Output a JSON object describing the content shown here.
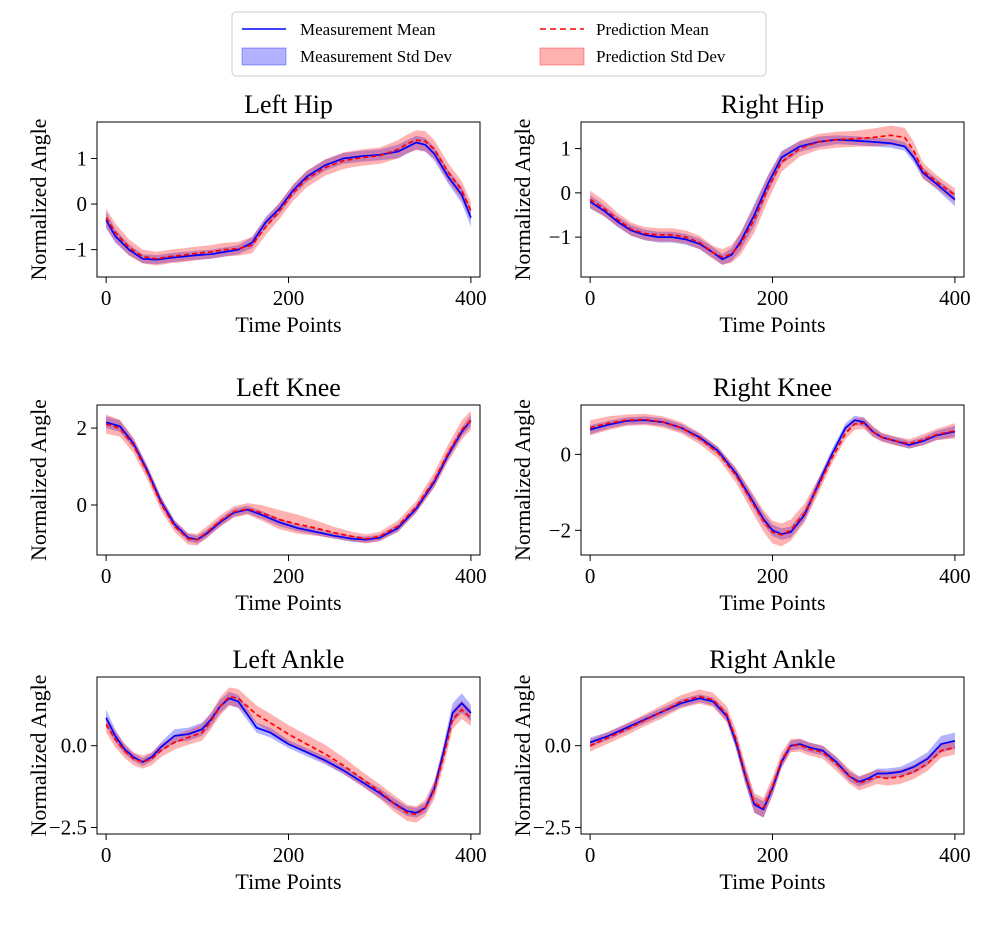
{
  "legend": {
    "items": [
      {
        "label": "Measurement Mean",
        "kind": "line",
        "color": "#0000ff",
        "dash": "solid"
      },
      {
        "label": "Prediction Mean",
        "kind": "line",
        "color": "#ff0000",
        "dash": "dashed"
      },
      {
        "label": "Measurement Std Dev",
        "kind": "patch",
        "color": "#0000ff"
      },
      {
        "label": "Prediction Std Dev",
        "kind": "patch",
        "color": "#ff0000"
      }
    ]
  },
  "chart_data": [
    {
      "type": "line",
      "title": "Left Hip",
      "xlabel": "Time Points",
      "ylabel": "Normalized Angle",
      "xlim": [
        -10,
        410
      ],
      "ylim": [
        -1.6,
        1.8
      ],
      "xticks": [
        0,
        200,
        400
      ],
      "yticks": [
        -1,
        0,
        1
      ],
      "ytick_labels": [
        "−1",
        "0",
        "1"
      ],
      "x": [
        0,
        10,
        25,
        40,
        55,
        70,
        85,
        100,
        115,
        130,
        145,
        160,
        175,
        190,
        205,
        220,
        240,
        260,
        280,
        300,
        320,
        330,
        340,
        350,
        360,
        375,
        390,
        400
      ],
      "series": [
        {
          "name": "Measurement",
          "mean": [
            -0.35,
            -0.7,
            -1.0,
            -1.2,
            -1.22,
            -1.18,
            -1.15,
            -1.12,
            -1.1,
            -1.05,
            -1.0,
            -0.85,
            -0.4,
            -0.1,
            0.3,
            0.6,
            0.85,
            1.0,
            1.05,
            1.08,
            1.15,
            1.25,
            1.35,
            1.3,
            1.1,
            0.6,
            0.2,
            -0.3
          ],
          "std": [
            0.18,
            0.15,
            0.12,
            0.1,
            0.1,
            0.1,
            0.1,
            0.1,
            0.1,
            0.1,
            0.1,
            0.12,
            0.12,
            0.12,
            0.12,
            0.12,
            0.12,
            0.12,
            0.12,
            0.12,
            0.15,
            0.15,
            0.15,
            0.15,
            0.15,
            0.15,
            0.18,
            0.2
          ],
          "color": "#0000ff"
        },
        {
          "name": "Prediction",
          "mean": [
            -0.3,
            -0.62,
            -0.95,
            -1.15,
            -1.2,
            -1.15,
            -1.12,
            -1.08,
            -1.05,
            -1.0,
            -0.98,
            -0.9,
            -0.5,
            -0.15,
            0.25,
            0.55,
            0.8,
            0.95,
            1.02,
            1.06,
            1.2,
            1.32,
            1.4,
            1.38,
            1.2,
            0.7,
            0.3,
            -0.15
          ],
          "std": [
            0.2,
            0.2,
            0.18,
            0.15,
            0.15,
            0.15,
            0.15,
            0.15,
            0.15,
            0.15,
            0.15,
            0.18,
            0.18,
            0.18,
            0.18,
            0.18,
            0.18,
            0.18,
            0.18,
            0.18,
            0.2,
            0.2,
            0.22,
            0.22,
            0.2,
            0.2,
            0.2,
            0.2
          ],
          "color": "#ff0000"
        }
      ]
    },
    {
      "type": "line",
      "title": "Right Hip",
      "xlabel": "Time Points",
      "ylabel": "Normalized Angle",
      "xlim": [
        -10,
        410
      ],
      "ylim": [
        -1.9,
        1.6
      ],
      "xticks": [
        0,
        200,
        400
      ],
      "yticks": [
        -1,
        0,
        1
      ],
      "ytick_labels": [
        "−1",
        "0",
        "1"
      ],
      "x": [
        0,
        15,
        30,
        45,
        60,
        75,
        90,
        105,
        120,
        135,
        145,
        155,
        165,
        180,
        195,
        210,
        230,
        250,
        270,
        290,
        310,
        330,
        345,
        355,
        365,
        380,
        400
      ],
      "series": [
        {
          "name": "Measurement",
          "mean": [
            -0.2,
            -0.4,
            -0.65,
            -0.85,
            -0.95,
            -1.0,
            -1.0,
            -1.05,
            -1.15,
            -1.35,
            -1.5,
            -1.4,
            -1.1,
            -0.5,
            0.2,
            0.8,
            1.05,
            1.15,
            1.2,
            1.18,
            1.15,
            1.12,
            1.05,
            0.8,
            0.45,
            0.2,
            -0.15
          ],
          "std": [
            0.15,
            0.12,
            0.12,
            0.12,
            0.12,
            0.12,
            0.12,
            0.12,
            0.12,
            0.12,
            0.12,
            0.15,
            0.2,
            0.25,
            0.2,
            0.15,
            0.12,
            0.12,
            0.1,
            0.1,
            0.1,
            0.1,
            0.1,
            0.12,
            0.12,
            0.12,
            0.15
          ],
          "color": "#0000ff"
        },
        {
          "name": "Prediction",
          "mean": [
            -0.15,
            -0.35,
            -0.6,
            -0.82,
            -0.92,
            -0.95,
            -0.95,
            -1.0,
            -1.12,
            -1.35,
            -1.45,
            -1.38,
            -1.15,
            -0.6,
            0.1,
            0.7,
            1.0,
            1.15,
            1.2,
            1.22,
            1.25,
            1.3,
            1.25,
            0.95,
            0.5,
            0.25,
            -0.05
          ],
          "std": [
            0.2,
            0.18,
            0.15,
            0.15,
            0.15,
            0.15,
            0.15,
            0.15,
            0.15,
            0.15,
            0.18,
            0.2,
            0.25,
            0.3,
            0.28,
            0.22,
            0.18,
            0.18,
            0.18,
            0.18,
            0.2,
            0.22,
            0.22,
            0.2,
            0.18,
            0.15,
            0.15
          ],
          "color": "#ff0000"
        }
      ]
    },
    {
      "type": "line",
      "title": "Left Knee",
      "xlabel": "Time Points",
      "ylabel": "Normalized Angle",
      "xlim": [
        -10,
        410
      ],
      "ylim": [
        -1.3,
        2.6
      ],
      "xticks": [
        0,
        200,
        400
      ],
      "yticks": [
        0,
        2
      ],
      "ytick_labels": [
        "0",
        "2"
      ],
      "x": [
        0,
        15,
        30,
        45,
        60,
        75,
        90,
        100,
        110,
        125,
        140,
        155,
        170,
        190,
        210,
        230,
        250,
        270,
        285,
        300,
        320,
        340,
        360,
        375,
        390,
        400
      ],
      "series": [
        {
          "name": "Measurement",
          "mean": [
            2.15,
            2.05,
            1.6,
            0.9,
            0.1,
            -0.5,
            -0.85,
            -0.9,
            -0.75,
            -0.45,
            -0.2,
            -0.12,
            -0.25,
            -0.45,
            -0.6,
            -0.7,
            -0.8,
            -0.88,
            -0.9,
            -0.85,
            -0.6,
            -0.1,
            0.6,
            1.3,
            1.9,
            2.2
          ],
          "std": [
            0.15,
            0.15,
            0.12,
            0.12,
            0.12,
            0.1,
            0.1,
            0.1,
            0.1,
            0.1,
            0.1,
            0.1,
            0.1,
            0.1,
            0.08,
            0.08,
            0.08,
            0.08,
            0.08,
            0.08,
            0.1,
            0.1,
            0.12,
            0.12,
            0.12,
            0.15
          ],
          "color": "#0000ff"
        },
        {
          "name": "Prediction",
          "mean": [
            2.1,
            2.0,
            1.55,
            0.85,
            0.05,
            -0.55,
            -0.88,
            -0.9,
            -0.72,
            -0.42,
            -0.18,
            -0.1,
            -0.2,
            -0.38,
            -0.5,
            -0.6,
            -0.72,
            -0.82,
            -0.88,
            -0.82,
            -0.55,
            -0.05,
            0.65,
            1.35,
            1.95,
            2.2
          ],
          "std": [
            0.25,
            0.22,
            0.2,
            0.18,
            0.18,
            0.15,
            0.15,
            0.15,
            0.15,
            0.15,
            0.15,
            0.15,
            0.2,
            0.25,
            0.25,
            0.2,
            0.15,
            0.12,
            0.12,
            0.12,
            0.15,
            0.15,
            0.2,
            0.22,
            0.25,
            0.25
          ],
          "color": "#ff0000"
        }
      ]
    },
    {
      "type": "line",
      "title": "Right Knee",
      "xlabel": "Time Points",
      "ylabel": "Normalized Angle",
      "xlim": [
        -10,
        410
      ],
      "ylim": [
        -2.65,
        1.3
      ],
      "xticks": [
        0,
        200,
        400
      ],
      "yticks": [
        -2,
        0
      ],
      "ytick_labels": [
        "−2",
        "0"
      ],
      "x": [
        0,
        20,
        40,
        60,
        80,
        100,
        120,
        140,
        160,
        175,
        190,
        200,
        210,
        220,
        235,
        250,
        265,
        280,
        290,
        300,
        310,
        320,
        335,
        350,
        365,
        380,
        400
      ],
      "series": [
        {
          "name": "Measurement",
          "mean": [
            0.65,
            0.78,
            0.88,
            0.9,
            0.85,
            0.7,
            0.45,
            0.1,
            -0.5,
            -1.1,
            -1.7,
            -2.0,
            -2.1,
            -2.05,
            -1.6,
            -0.8,
            0.0,
            0.7,
            0.9,
            0.85,
            0.6,
            0.45,
            0.35,
            0.25,
            0.35,
            0.5,
            0.6
          ],
          "std": [
            0.12,
            0.1,
            0.1,
            0.1,
            0.1,
            0.1,
            0.1,
            0.1,
            0.12,
            0.15,
            0.15,
            0.15,
            0.15,
            0.15,
            0.15,
            0.15,
            0.12,
            0.12,
            0.12,
            0.12,
            0.12,
            0.1,
            0.1,
            0.1,
            0.1,
            0.12,
            0.15
          ],
          "color": "#0000ff"
        },
        {
          "name": "Prediction",
          "mean": [
            0.7,
            0.82,
            0.9,
            0.92,
            0.85,
            0.7,
            0.42,
            0.05,
            -0.55,
            -1.15,
            -1.75,
            -2.05,
            -2.12,
            -2.0,
            -1.55,
            -0.85,
            -0.1,
            0.55,
            0.8,
            0.82,
            0.6,
            0.45,
            0.35,
            0.28,
            0.38,
            0.52,
            0.62
          ],
          "std": [
            0.2,
            0.18,
            0.15,
            0.15,
            0.15,
            0.15,
            0.15,
            0.15,
            0.2,
            0.25,
            0.28,
            0.3,
            0.3,
            0.28,
            0.25,
            0.2,
            0.15,
            0.15,
            0.15,
            0.15,
            0.15,
            0.12,
            0.12,
            0.12,
            0.15,
            0.15,
            0.2
          ],
          "color": "#ff0000"
        }
      ]
    },
    {
      "type": "line",
      "title": "Left Ankle",
      "xlabel": "Time Points",
      "ylabel": "Normalized Angle",
      "xlim": [
        -10,
        410
      ],
      "ylim": [
        -2.7,
        2.1
      ],
      "xticks": [
        0,
        200,
        400
      ],
      "yticks": [
        -2.5,
        0
      ],
      "ytick_labels": [
        "−2.5",
        "0.0"
      ],
      "x": [
        0,
        10,
        20,
        30,
        40,
        50,
        60,
        75,
        90,
        105,
        115,
        125,
        135,
        145,
        155,
        165,
        180,
        200,
        220,
        240,
        260,
        280,
        300,
        315,
        330,
        340,
        350,
        360,
        370,
        380,
        390,
        400
      ],
      "series": [
        {
          "name": "Measurement",
          "mean": [
            0.85,
            0.3,
            -0.1,
            -0.35,
            -0.5,
            -0.35,
            -0.05,
            0.3,
            0.35,
            0.5,
            0.8,
            1.2,
            1.45,
            1.35,
            0.95,
            0.55,
            0.4,
            0.05,
            -0.2,
            -0.45,
            -0.75,
            -1.1,
            -1.45,
            -1.75,
            -2.0,
            -2.05,
            -1.9,
            -1.3,
            -0.2,
            1.0,
            1.3,
            1.0
          ],
          "std": [
            0.25,
            0.2,
            0.15,
            0.12,
            0.12,
            0.12,
            0.15,
            0.2,
            0.2,
            0.2,
            0.2,
            0.2,
            0.2,
            0.2,
            0.18,
            0.15,
            0.15,
            0.12,
            0.12,
            0.12,
            0.12,
            0.12,
            0.15,
            0.15,
            0.15,
            0.15,
            0.15,
            0.2,
            0.25,
            0.3,
            0.3,
            0.25
          ],
          "color": "#0000ff"
        },
        {
          "name": "Prediction",
          "mean": [
            0.65,
            0.2,
            -0.15,
            -0.4,
            -0.5,
            -0.4,
            -0.15,
            0.1,
            0.25,
            0.4,
            0.75,
            1.2,
            1.5,
            1.45,
            1.2,
            0.95,
            0.7,
            0.35,
            0.05,
            -0.25,
            -0.6,
            -1.0,
            -1.4,
            -1.75,
            -2.05,
            -2.1,
            -1.9,
            -1.35,
            -0.35,
            0.8,
            1.1,
            0.85
          ],
          "std": [
            0.25,
            0.25,
            0.22,
            0.2,
            0.2,
            0.2,
            0.2,
            0.22,
            0.22,
            0.25,
            0.25,
            0.28,
            0.28,
            0.28,
            0.28,
            0.28,
            0.28,
            0.28,
            0.28,
            0.28,
            0.25,
            0.22,
            0.22,
            0.25,
            0.25,
            0.25,
            0.25,
            0.28,
            0.3,
            0.3,
            0.28,
            0.25
          ],
          "color": "#ff0000"
        }
      ]
    },
    {
      "type": "line",
      "title": "Right Ankle",
      "xlabel": "Time Points",
      "ylabel": "Normalized Angle",
      "xlim": [
        -10,
        410
      ],
      "ylim": [
        -2.7,
        2.1
      ],
      "xticks": [
        0,
        200,
        400
      ],
      "yticks": [
        -2.5,
        0
      ],
      "ytick_labels": [
        "−2.5",
        "0.0"
      ],
      "x": [
        0,
        20,
        40,
        60,
        80,
        100,
        120,
        135,
        150,
        160,
        170,
        180,
        190,
        200,
        210,
        220,
        230,
        240,
        255,
        270,
        285,
        295,
        305,
        315,
        325,
        340,
        355,
        370,
        385,
        400
      ],
      "series": [
        {
          "name": "Measurement",
          "mean": [
            0.1,
            0.3,
            0.55,
            0.8,
            1.05,
            1.3,
            1.45,
            1.35,
            0.9,
            0.1,
            -0.9,
            -1.8,
            -1.95,
            -1.3,
            -0.5,
            0.0,
            0.05,
            -0.05,
            -0.15,
            -0.5,
            -0.95,
            -1.1,
            -1.0,
            -0.85,
            -0.85,
            -0.8,
            -0.65,
            -0.4,
            0.05,
            0.15
          ],
          "std": [
            0.15,
            0.12,
            0.12,
            0.12,
            0.12,
            0.12,
            0.12,
            0.12,
            0.15,
            0.2,
            0.25,
            0.25,
            0.25,
            0.2,
            0.15,
            0.15,
            0.15,
            0.15,
            0.15,
            0.15,
            0.15,
            0.15,
            0.15,
            0.15,
            0.15,
            0.15,
            0.2,
            0.2,
            0.25,
            0.25
          ],
          "color": "#0000ff"
        },
        {
          "name": "Prediction",
          "mean": [
            0.0,
            0.25,
            0.5,
            0.78,
            1.05,
            1.35,
            1.5,
            1.4,
            0.95,
            0.2,
            -0.85,
            -1.75,
            -1.9,
            -1.25,
            -0.45,
            0.0,
            0.02,
            -0.1,
            -0.2,
            -0.55,
            -0.95,
            -1.15,
            -1.05,
            -0.95,
            -1.0,
            -0.95,
            -0.8,
            -0.55,
            -0.15,
            -0.05
          ],
          "std": [
            0.18,
            0.18,
            0.18,
            0.18,
            0.2,
            0.2,
            0.22,
            0.22,
            0.25,
            0.28,
            0.3,
            0.3,
            0.3,
            0.28,
            0.25,
            0.2,
            0.2,
            0.2,
            0.2,
            0.22,
            0.22,
            0.22,
            0.22,
            0.22,
            0.22,
            0.22,
            0.22,
            0.22,
            0.22,
            0.22
          ],
          "color": "#ff0000"
        }
      ]
    }
  ]
}
